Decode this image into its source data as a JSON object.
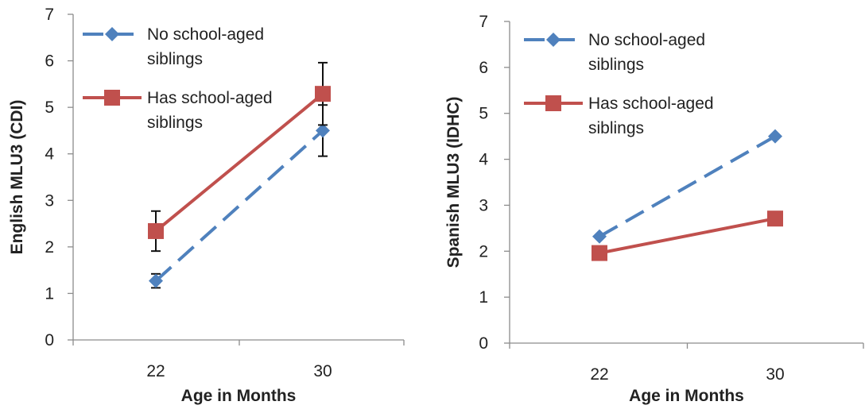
{
  "chart_data": [
    {
      "type": "line",
      "title": "",
      "xlabel": "Age in Months",
      "ylabel": "English MLU3 (CDI)",
      "categories": [
        "22",
        "30"
      ],
      "ylim": [
        0,
        7
      ],
      "yticks": [
        "0",
        "1",
        "2",
        "3",
        "4",
        "5",
        "6",
        "7"
      ],
      "grid": false,
      "legend_position": "top-left",
      "series": [
        {
          "name": "No school-aged siblings",
          "legend_lines": [
            "No school-aged",
            "siblings"
          ],
          "values": [
            1.27,
            4.5
          ],
          "error": [
            0.15,
            0.55
          ],
          "color": "#4f81bd",
          "dash": true,
          "marker": "diamond"
        },
        {
          "name": "Has school-aged siblings",
          "legend_lines": [
            "Has school-aged",
            "siblings"
          ],
          "values": [
            2.34,
            5.29
          ],
          "error": [
            0.43,
            0.67
          ],
          "color": "#c0504d",
          "dash": false,
          "marker": "square"
        }
      ]
    },
    {
      "type": "line",
      "title": "",
      "xlabel": "Age in Months",
      "ylabel": "Spanish MLU3 (IDHC)",
      "categories": [
        "22",
        "30"
      ],
      "ylim": [
        0,
        7
      ],
      "yticks": [
        "0",
        "1",
        "2",
        "3",
        "4",
        "5",
        "6",
        "7"
      ],
      "grid": false,
      "legend_position": "top-left",
      "series": [
        {
          "name": "No school-aged siblings",
          "legend_lines": [
            "No school-aged",
            "siblings"
          ],
          "values": [
            2.32,
            4.5
          ],
          "color": "#4f81bd",
          "dash": true,
          "marker": "diamond"
        },
        {
          "name": "Has school-aged siblings",
          "legend_lines": [
            "Has school-aged",
            "siblings"
          ],
          "values": [
            1.96,
            2.71
          ],
          "color": "#c0504d",
          "dash": false,
          "marker": "square"
        }
      ]
    }
  ]
}
